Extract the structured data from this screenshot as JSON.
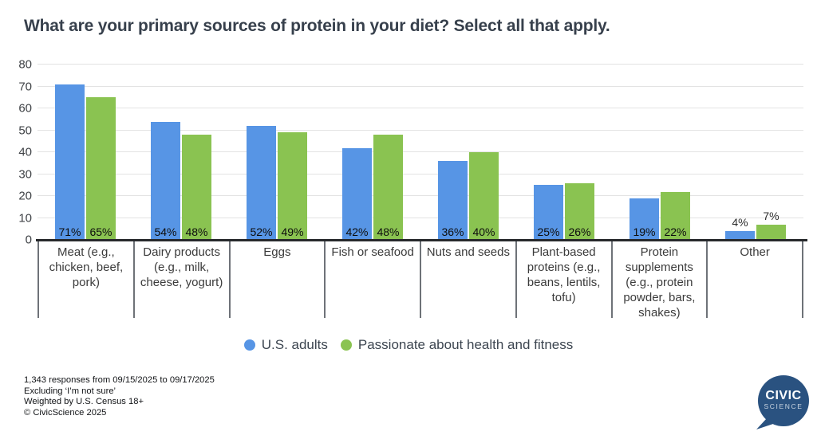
{
  "title": "What are your primary sources of protein in your diet? Select all that apply.",
  "chart_data": {
    "type": "bar",
    "categories": [
      "Meat (e.g., chicken, beef, pork)",
      "Dairy products (e.g., milk, cheese, yogurt)",
      "Eggs",
      "Fish or seafood",
      "Nuts and seeds",
      "Plant-based proteins (e.g., beans, lentils, tofu)",
      "Protein supplements (e.g., protein powder, bars, shakes)",
      "Other"
    ],
    "series": [
      {
        "name": "U.S. adults",
        "color": "#5795e5",
        "values": [
          71,
          54,
          52,
          42,
          36,
          25,
          19,
          4
        ]
      },
      {
        "name": "Passionate about health and fitness",
        "color": "#8ac351",
        "values": [
          65,
          48,
          49,
          48,
          40,
          26,
          22,
          7
        ]
      }
    ],
    "value_suffix": "%",
    "ylim": [
      0,
      80
    ],
    "yticks": [
      0,
      10,
      20,
      30,
      40,
      50,
      60,
      70,
      80
    ],
    "grid": true,
    "legend_position": "bottom"
  },
  "footer": {
    "lines": [
      "1,343 responses from 09/15/2025 to 09/17/2025",
      "Excluding ‘I’m not sure’",
      "Weighted by U.S. Census 18+",
      "© CivicScience 2025"
    ]
  },
  "logo": {
    "line1": "CIVIC",
    "line2": "SCIENCE"
  },
  "colors": {
    "series_us_adults": "#5795e5",
    "series_health_fitness": "#8ac351",
    "baseline": "#27292c",
    "gridline": "#e3e3e3",
    "logo_navy": "#2a5280"
  }
}
